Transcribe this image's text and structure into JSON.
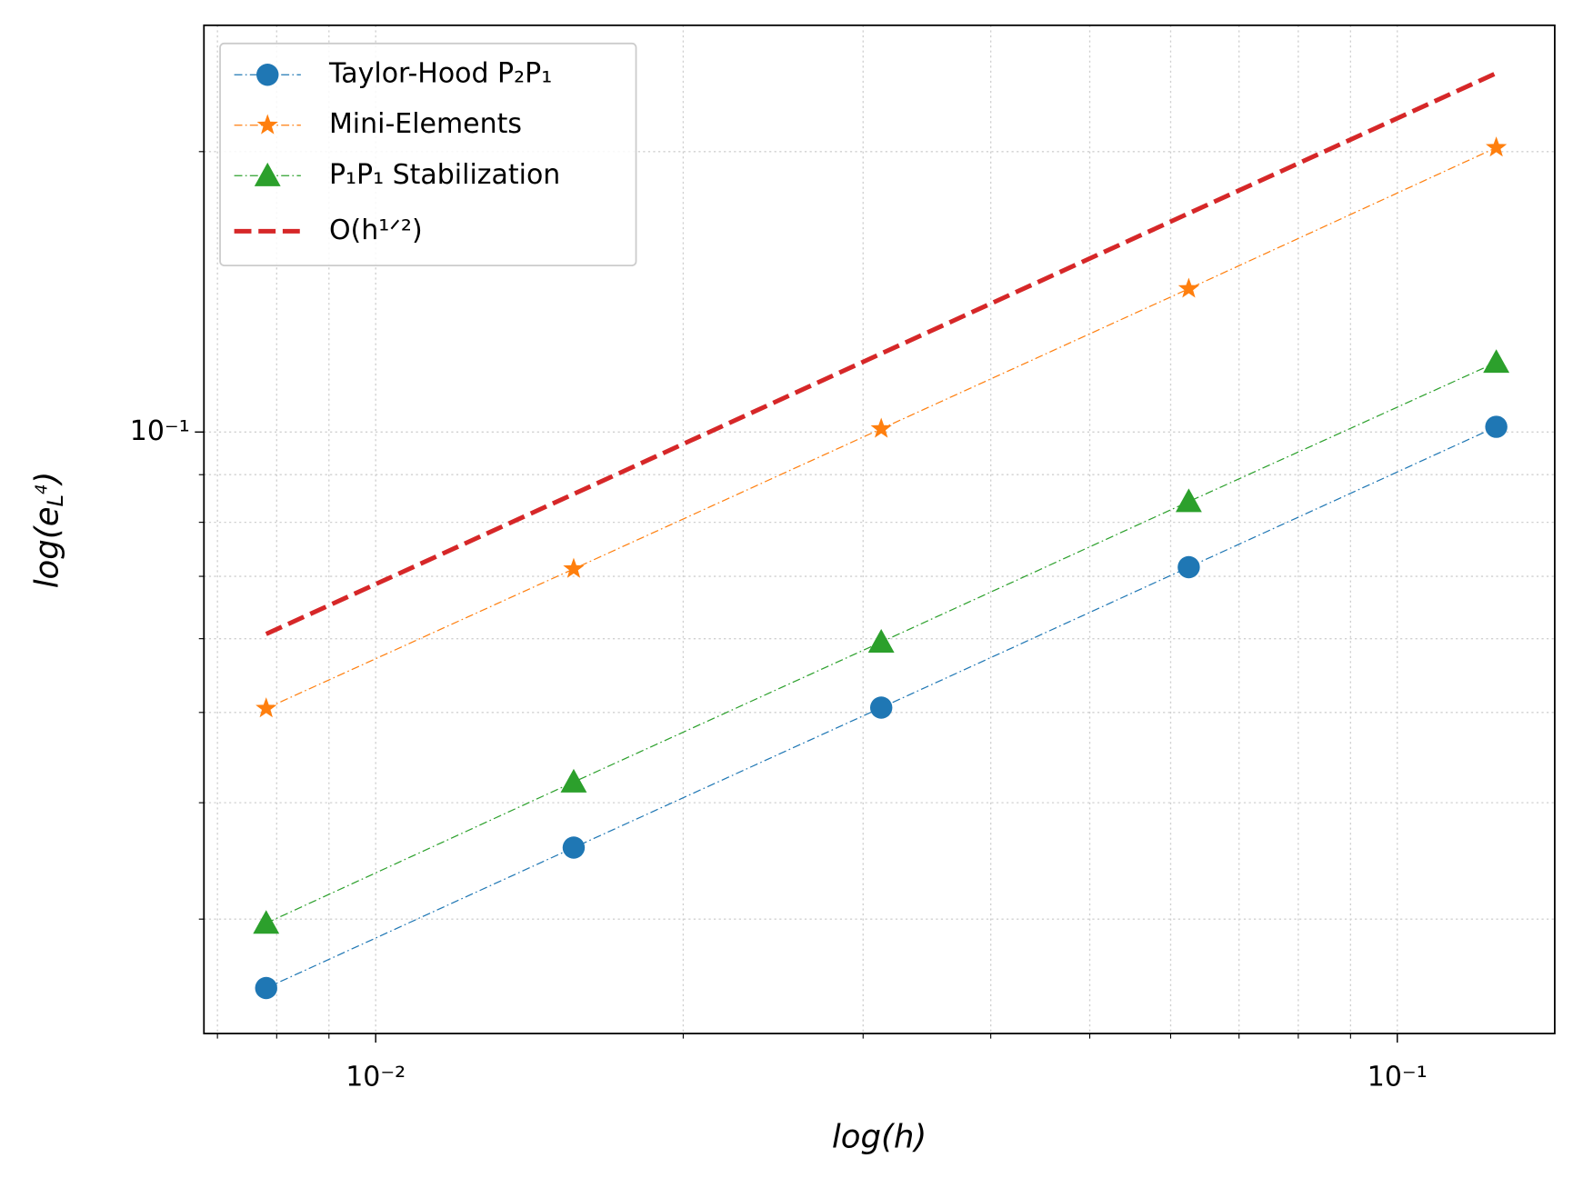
{
  "chart_data": {
    "type": "line",
    "xlabel": "log(h)",
    "ylabel": [
      "log(e",
      "L",
      "4",
      ")"
    ],
    "log_x": true,
    "log_y": true,
    "grid": true,
    "legend": "upper left",
    "x": [
      0.0078125,
      0.015625,
      0.03125,
      0.0625,
      0.125
    ],
    "xlim": [
      0.00679,
      0.1426
    ],
    "ylim": [
      0.02261,
      0.2733
    ],
    "xticks": [
      {
        "value": 0.01,
        "label": "10⁻²"
      },
      {
        "value": 0.1,
        "label": "10⁻¹"
      }
    ],
    "yticks": [
      {
        "value": 0.1,
        "label": "10⁻¹"
      }
    ],
    "xminor": [
      0.007,
      0.008,
      0.009,
      0.02,
      0.03,
      0.04,
      0.05,
      0.06,
      0.07,
      0.08,
      0.09
    ],
    "yminor": [
      0.03,
      0.04,
      0.05,
      0.06,
      0.07,
      0.08,
      0.09,
      0.2
    ],
    "series": [
      {
        "name": "Taylor-Hood P₂P₁",
        "color": "#1f77b4",
        "marker": "circle",
        "values": [
          0.0253,
          0.0358,
          0.0506,
          0.0716,
          0.1013
        ]
      },
      {
        "name": "Mini-Elements",
        "color": "#ff7f0e",
        "marker": "star",
        "values": [
          0.0505,
          0.0713,
          0.1008,
          0.1425,
          0.202
        ]
      },
      {
        "name": "P₁P₁ Stabilization",
        "color": "#2ca02c",
        "marker": "triangle",
        "values": [
          0.0297,
          0.0421,
          0.0595,
          0.0842,
          0.1188
        ]
      },
      {
        "name": "O(h¹ᐟ²)",
        "color": "#d62728",
        "marker": "none",
        "values": [
          0.0607,
          0.0858,
          0.1214,
          0.1717,
          0.2428
        ]
      }
    ]
  }
}
